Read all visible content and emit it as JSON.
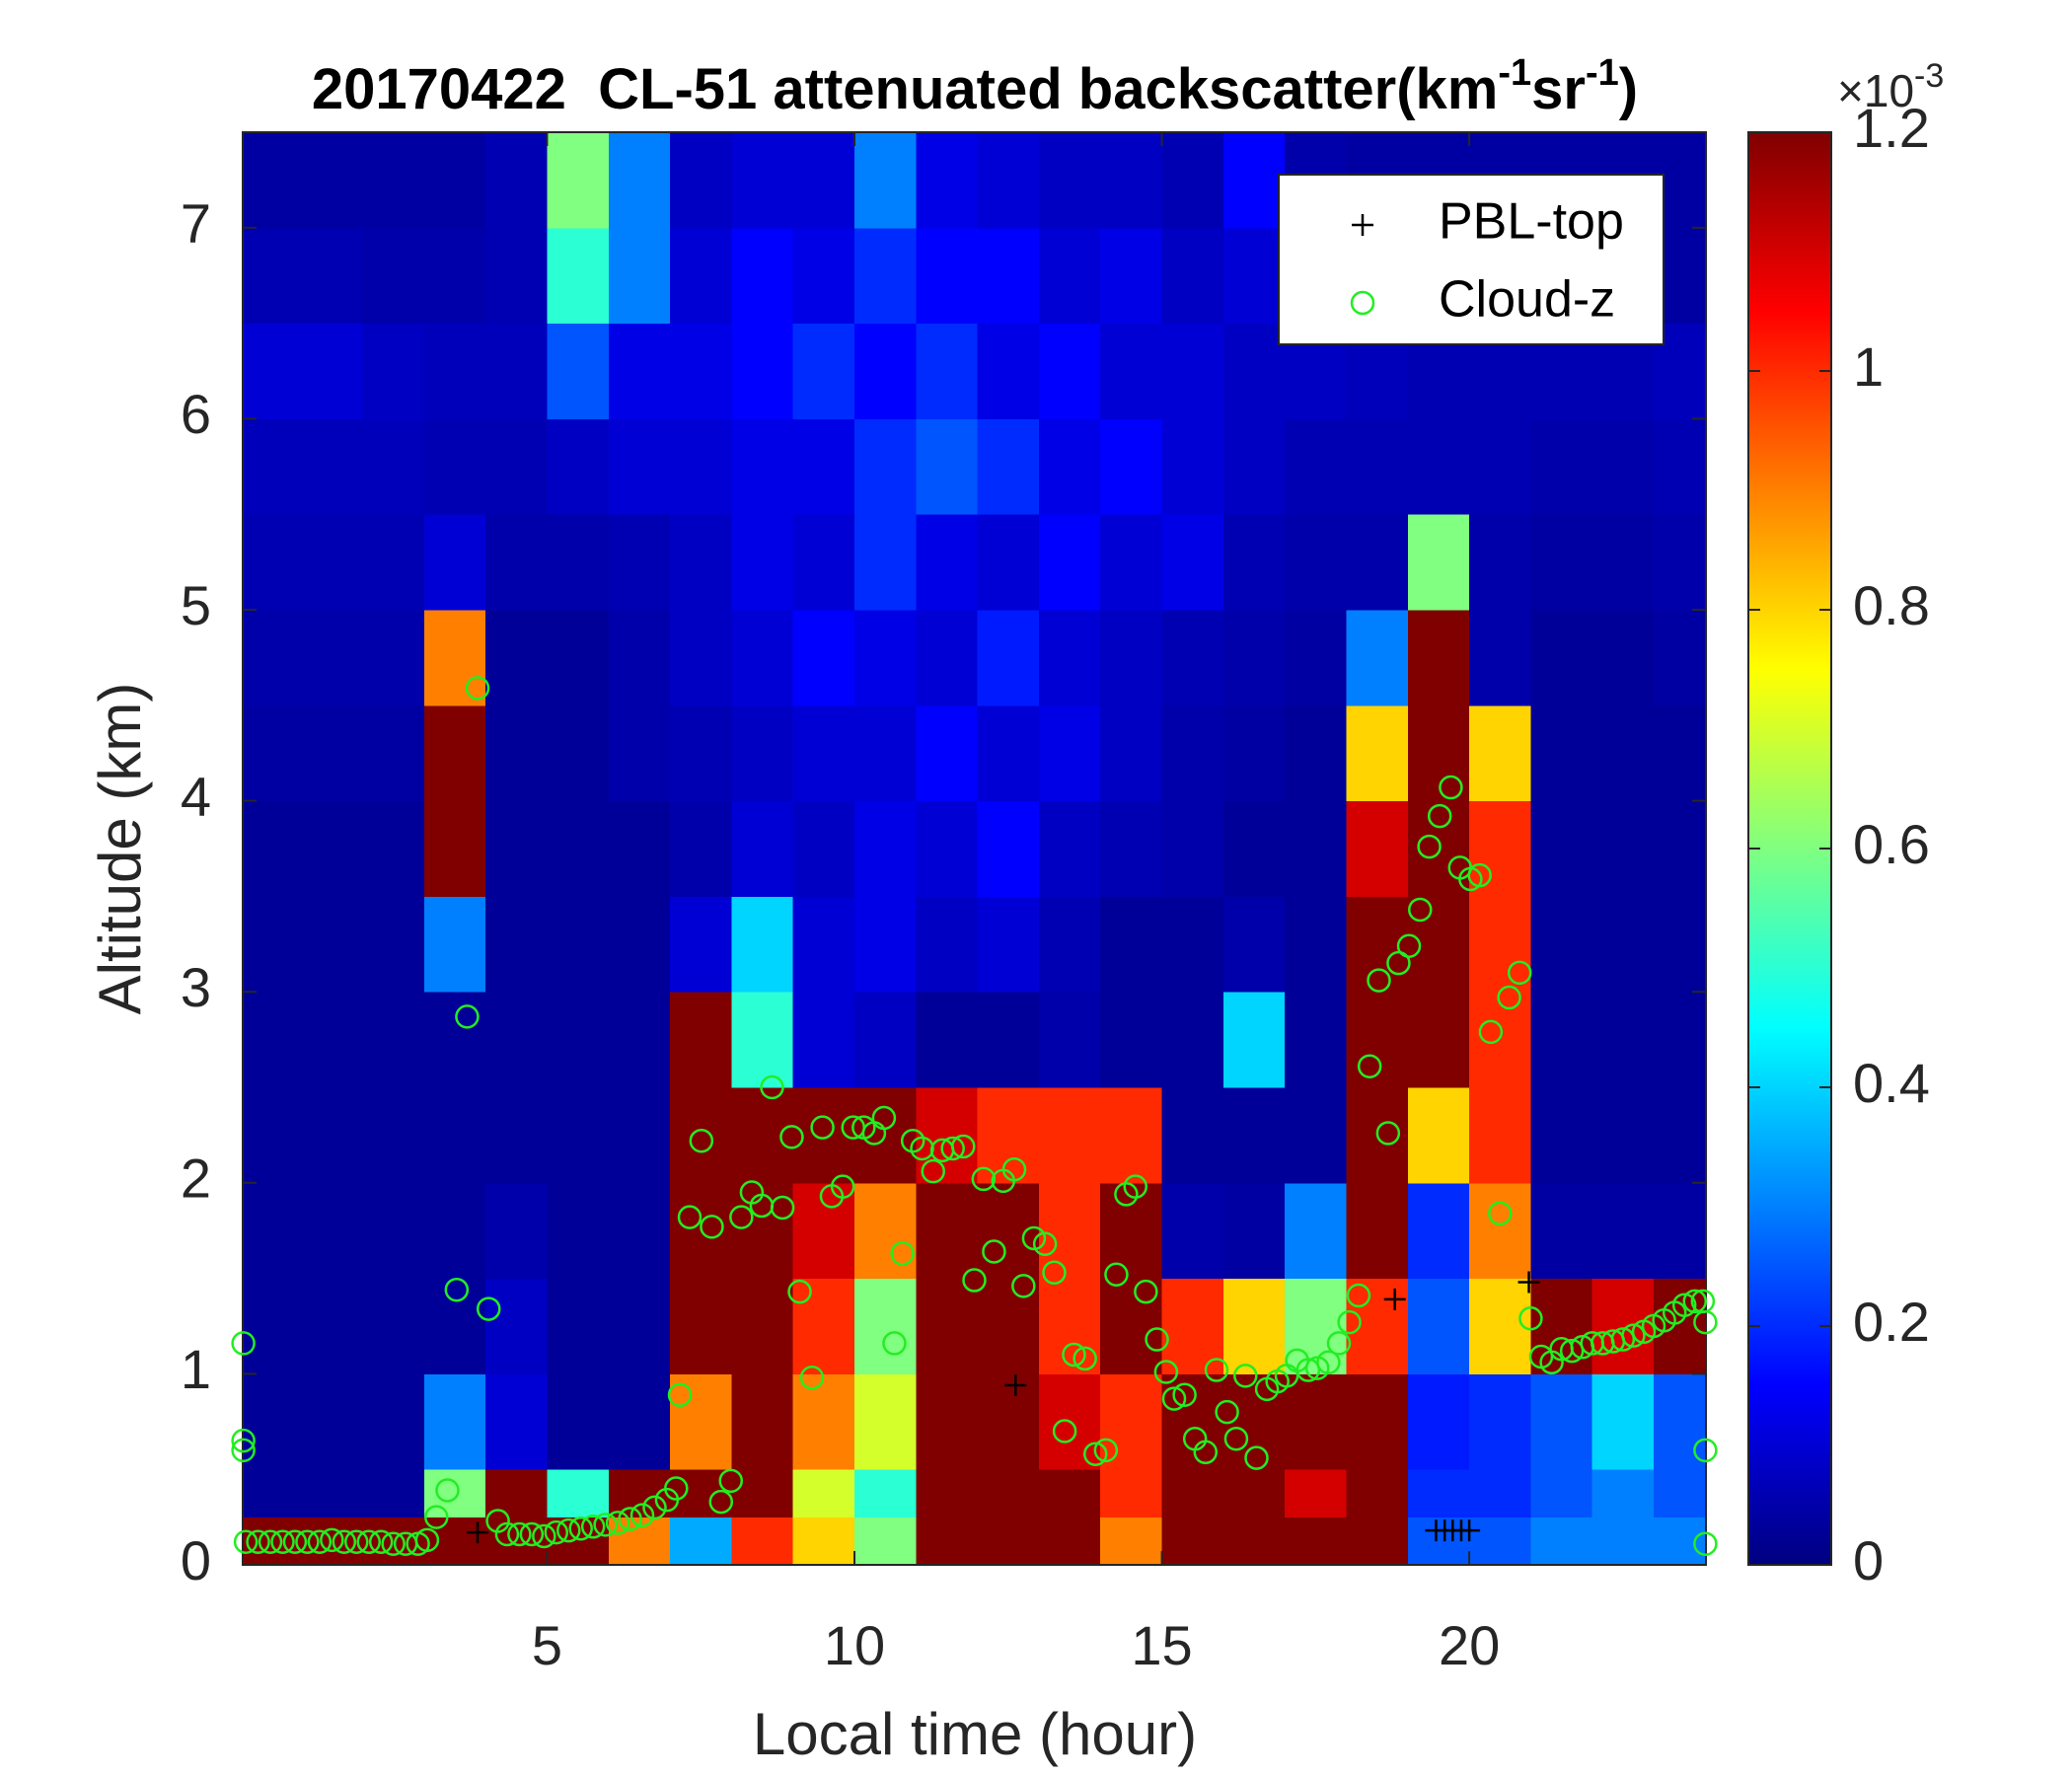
{
  "chart_data": {
    "type": "heatmap",
    "title": [
      "20170422  CL-51 attenuated backscatter(km",
      "-1",
      "sr",
      "-1",
      ")"
    ],
    "x_label": "Local time (hour)",
    "y_label": "Altitude (km)",
    "xlim": [
      0.05,
      23.85
    ],
    "ylim": [
      0,
      7.5
    ],
    "xticks": [
      5,
      10,
      15,
      20
    ],
    "yticks": [
      0,
      1,
      2,
      3,
      4,
      5,
      6,
      7
    ],
    "colormap": "jet",
    "clim": [
      0,
      1.2
    ],
    "colorbar_ticks": [
      0,
      0.2,
      0.4,
      0.6,
      0.8,
      1,
      1.2
    ],
    "colorbar_label": [
      "×10",
      "-3"
    ],
    "x_edges": [
      0,
      1,
      2,
      3,
      4,
      5,
      6,
      7,
      8,
      9,
      10,
      11,
      12,
      13,
      14,
      15,
      16,
      17,
      18,
      19,
      20,
      21,
      22,
      23,
      24
    ],
    "y_edges": [
      0,
      0.25,
      0.5,
      1,
      1.5,
      2,
      2.5,
      3,
      3.5,
      4,
      4.5,
      5,
      5.5,
      6,
      6.5,
      7,
      7.5
    ],
    "z": [
      [
        1.2,
        1.2,
        1.2,
        1.2,
        1.2,
        1.2,
        0.9,
        0.35,
        1.0,
        0.8,
        0.6,
        1.2,
        1.2,
        1.2,
        0.9,
        1.2,
        1.2,
        1.2,
        1.2,
        0.25,
        0.25,
        0.3,
        0.3,
        0.3
      ],
      [
        0.03,
        0.03,
        0.03,
        0.6,
        1.2,
        0.5,
        1.2,
        1.2,
        1.2,
        0.7,
        0.5,
        1.2,
        1.2,
        1.2,
        1.0,
        1.2,
        1.2,
        1.1,
        1.2,
        0.2,
        0.2,
        0.25,
        0.3,
        0.25
      ],
      [
        0.03,
        0.03,
        0.03,
        0.3,
        0.1,
        0.03,
        0.03,
        0.9,
        1.2,
        0.9,
        0.7,
        1.2,
        1.2,
        1.1,
        1.0,
        1.2,
        1.2,
        1.2,
        1.2,
        0.18,
        0.2,
        0.25,
        0.4,
        0.25
      ],
      [
        0.03,
        0.03,
        0.03,
        0.03,
        0.08,
        0.03,
        0.03,
        1.2,
        1.2,
        1.0,
        0.6,
        1.2,
        1.2,
        1.0,
        1.2,
        1.0,
        0.8,
        0.6,
        1.0,
        0.25,
        0.8,
        1.2,
        1.1,
        1.2
      ],
      [
        0.03,
        0.03,
        0.03,
        0.03,
        0.05,
        0.03,
        0.03,
        1.2,
        1.2,
        1.1,
        0.9,
        1.2,
        1.2,
        1.0,
        1.2,
        0.05,
        0.04,
        0.3,
        1.2,
        0.2,
        0.9,
        0.04,
        0.04,
        0.04
      ],
      [
        0.03,
        0.03,
        0.03,
        0.03,
        0.03,
        0.03,
        0.03,
        1.2,
        1.2,
        1.2,
        1.2,
        1.1,
        1.0,
        1.0,
        1.0,
        0.03,
        0.03,
        0.03,
        1.2,
        0.8,
        1.0,
        0.03,
        0.03,
        0.03
      ],
      [
        0.03,
        0.03,
        0.03,
        0.03,
        0.03,
        0.03,
        0.03,
        1.2,
        0.5,
        0.1,
        0.08,
        0.03,
        0.03,
        0.05,
        0.03,
        0.03,
        0.4,
        0.03,
        1.2,
        1.2,
        1.0,
        0.03,
        0.03,
        0.03
      ],
      [
        0.03,
        0.03,
        0.03,
        0.3,
        0.03,
        0.03,
        0.03,
        0.1,
        0.4,
        0.1,
        0.12,
        0.08,
        0.1,
        0.06,
        0.03,
        0.03,
        0.05,
        0.03,
        1.2,
        1.2,
        1.0,
        0.03,
        0.03,
        0.03
      ],
      [
        0.03,
        0.03,
        0.03,
        1.2,
        0.03,
        0.03,
        0.03,
        0.05,
        0.1,
        0.08,
        0.12,
        0.1,
        0.15,
        0.08,
        0.06,
        0.05,
        0.03,
        0.03,
        1.1,
        1.2,
        1.0,
        0.03,
        0.03,
        0.03
      ],
      [
        0.04,
        0.04,
        0.04,
        1.2,
        0.03,
        0.03,
        0.05,
        0.06,
        0.08,
        0.1,
        0.1,
        0.15,
        0.1,
        0.12,
        0.08,
        0.05,
        0.04,
        0.03,
        0.8,
        1.2,
        0.8,
        0.03,
        0.03,
        0.03
      ],
      [
        0.05,
        0.05,
        0.05,
        0.9,
        0.03,
        0.03,
        0.05,
        0.08,
        0.1,
        0.15,
        0.12,
        0.1,
        0.18,
        0.1,
        0.08,
        0.06,
        0.05,
        0.04,
        0.3,
        1.2,
        0.05,
        0.03,
        0.03,
        0.04
      ],
      [
        0.06,
        0.06,
        0.06,
        0.1,
        0.05,
        0.05,
        0.06,
        0.08,
        0.12,
        0.1,
        0.2,
        0.12,
        0.1,
        0.15,
        0.1,
        0.12,
        0.06,
        0.05,
        0.05,
        0.6,
        0.05,
        0.04,
        0.04,
        0.05
      ],
      [
        0.07,
        0.07,
        0.07,
        0.06,
        0.06,
        0.08,
        0.1,
        0.1,
        0.12,
        0.12,
        0.2,
        0.25,
        0.2,
        0.12,
        0.15,
        0.1,
        0.08,
        0.06,
        0.06,
        0.06,
        0.06,
        0.05,
        0.05,
        0.06
      ],
      [
        0.1,
        0.1,
        0.08,
        0.07,
        0.07,
        0.25,
        0.12,
        0.12,
        0.15,
        0.2,
        0.15,
        0.2,
        0.12,
        0.15,
        0.1,
        0.1,
        0.08,
        0.08,
        0.07,
        0.06,
        0.06,
        0.06,
        0.06,
        0.07
      ],
      [
        0.06,
        0.06,
        0.05,
        0.05,
        0.06,
        0.5,
        0.3,
        0.1,
        0.15,
        0.12,
        0.2,
        0.15,
        0.15,
        0.1,
        0.12,
        0.08,
        0.1,
        0.06,
        0.05,
        0.05,
        0.05,
        0.05,
        0.04,
        0.04
      ],
      [
        0.04,
        0.04,
        0.04,
        0.04,
        0.06,
        0.6,
        0.3,
        0.08,
        0.1,
        0.1,
        0.3,
        0.12,
        0.1,
        0.08,
        0.08,
        0.06,
        0.15,
        0.05,
        0.04,
        0.04,
        0.04,
        0.04,
        0.04,
        0.04
      ]
    ],
    "legend": "upper right",
    "series": [
      {
        "name": "PBL-top",
        "marker": "plus",
        "color": "#000000",
        "x": [
          3.87,
          12.62,
          18.79,
          20.97,
          19.46,
          19.6,
          19.73,
          19.87,
          20.0
        ],
        "values": [
          0.17,
          0.94,
          1.39,
          1.48,
          0.18,
          0.18,
          0.18,
          0.18,
          0.18
        ]
      },
      {
        "name": "Cloud-z",
        "marker": "circle",
        "color": "#22ee22",
        "x": [
          0.1,
          0.3,
          0.5,
          0.7,
          0.9,
          1.1,
          1.3,
          1.5,
          1.7,
          1.9,
          2.1,
          2.3,
          2.5,
          2.7,
          2.9,
          3.05,
          3.2,
          3.38,
          3.53,
          3.7,
          3.87,
          4.05,
          4.2,
          4.35,
          4.55,
          4.75,
          4.95,
          5.15,
          5.35,
          5.55,
          5.75,
          5.95,
          6.15,
          6.35,
          6.55,
          6.75,
          6.95,
          7.1,
          7.16,
          7.32,
          7.51,
          7.68,
          7.83,
          7.99,
          8.16,
          8.33,
          8.49,
          8.66,
          8.83,
          8.98,
          9.11,
          9.31,
          9.48,
          9.63,
          9.81,
          9.98,
          10.15,
          10.32,
          10.48,
          10.65,
          10.78,
          10.95,
          11.1,
          11.28,
          11.43,
          11.6,
          11.77,
          11.95,
          12.1,
          12.27,
          12.42,
          12.6,
          12.75,
          12.92,
          13.1,
          13.25,
          13.42,
          13.57,
          13.75,
          13.92,
          14.09,
          14.26,
          14.42,
          14.57,
          14.74,
          14.92,
          15.07,
          15.2,
          15.37,
          15.54,
          15.71,
          15.89,
          16.06,
          16.21,
          16.36,
          16.54,
          16.71,
          16.88,
          17.03,
          17.2,
          17.38,
          17.53,
          17.71,
          17.88,
          18.05,
          18.2,
          18.38,
          18.53,
          18.68,
          18.85,
          19.02,
          19.2,
          19.35,
          19.52,
          19.7,
          19.85,
          20.02,
          20.17,
          20.35,
          20.5,
          20.65,
          20.82,
          21.0,
          21.17,
          21.34,
          21.5,
          21.67,
          21.84,
          22.0,
          22.17,
          22.34,
          22.5,
          22.67,
          22.84,
          23.0,
          23.17,
          23.34,
          23.5,
          23.67,
          23.8,
          0.06,
          0.06,
          0.06,
          23.84,
          23.84,
          23.84
        ],
        "values": [
          0.12,
          0.12,
          0.12,
          0.12,
          0.12,
          0.12,
          0.12,
          0.13,
          0.12,
          0.12,
          0.12,
          0.12,
          0.11,
          0.11,
          0.11,
          0.13,
          0.25,
          0.39,
          1.44,
          2.87,
          4.59,
          1.34,
          0.23,
          0.16,
          0.16,
          0.16,
          0.15,
          0.17,
          0.18,
          0.19,
          0.2,
          0.21,
          0.22,
          0.24,
          0.26,
          0.3,
          0.34,
          0.4,
          0.89,
          1.82,
          2.22,
          1.77,
          0.33,
          0.44,
          1.82,
          1.95,
          1.88,
          2.5,
          1.87,
          2.24,
          1.43,
          0.98,
          2.29,
          1.93,
          1.98,
          2.29,
          2.29,
          2.26,
          2.34,
          1.16,
          1.63,
          2.22,
          2.18,
          2.06,
          2.17,
          2.18,
          2.19,
          1.49,
          2.02,
          1.64,
          2.01,
          2.07,
          1.46,
          1.71,
          1.68,
          1.53,
          0.7,
          1.1,
          1.08,
          0.58,
          0.6,
          1.52,
          1.94,
          1.98,
          1.43,
          1.18,
          1.01,
          0.87,
          0.89,
          0.66,
          0.59,
          1.02,
          0.8,
          0.66,
          0.99,
          0.56,
          0.92,
          0.96,
          0.99,
          1.07,
          1.02,
          1.03,
          1.06,
          1.16,
          1.27,
          1.41,
          2.61,
          3.06,
          2.26,
          3.15,
          3.24,
          3.43,
          3.76,
          3.92,
          4.07,
          3.65,
          3.59,
          3.61,
          2.79,
          1.84,
          2.97,
          3.1,
          1.29,
          1.09,
          1.06,
          1.13,
          1.12,
          1.14,
          1.16,
          1.16,
          1.17,
          1.18,
          1.2,
          1.22,
          1.25,
          1.28,
          1.32,
          1.36,
          1.38,
          1.38,
          1.16,
          0.65,
          0.6,
          1.27,
          0.6,
          0.11
        ]
      }
    ]
  }
}
